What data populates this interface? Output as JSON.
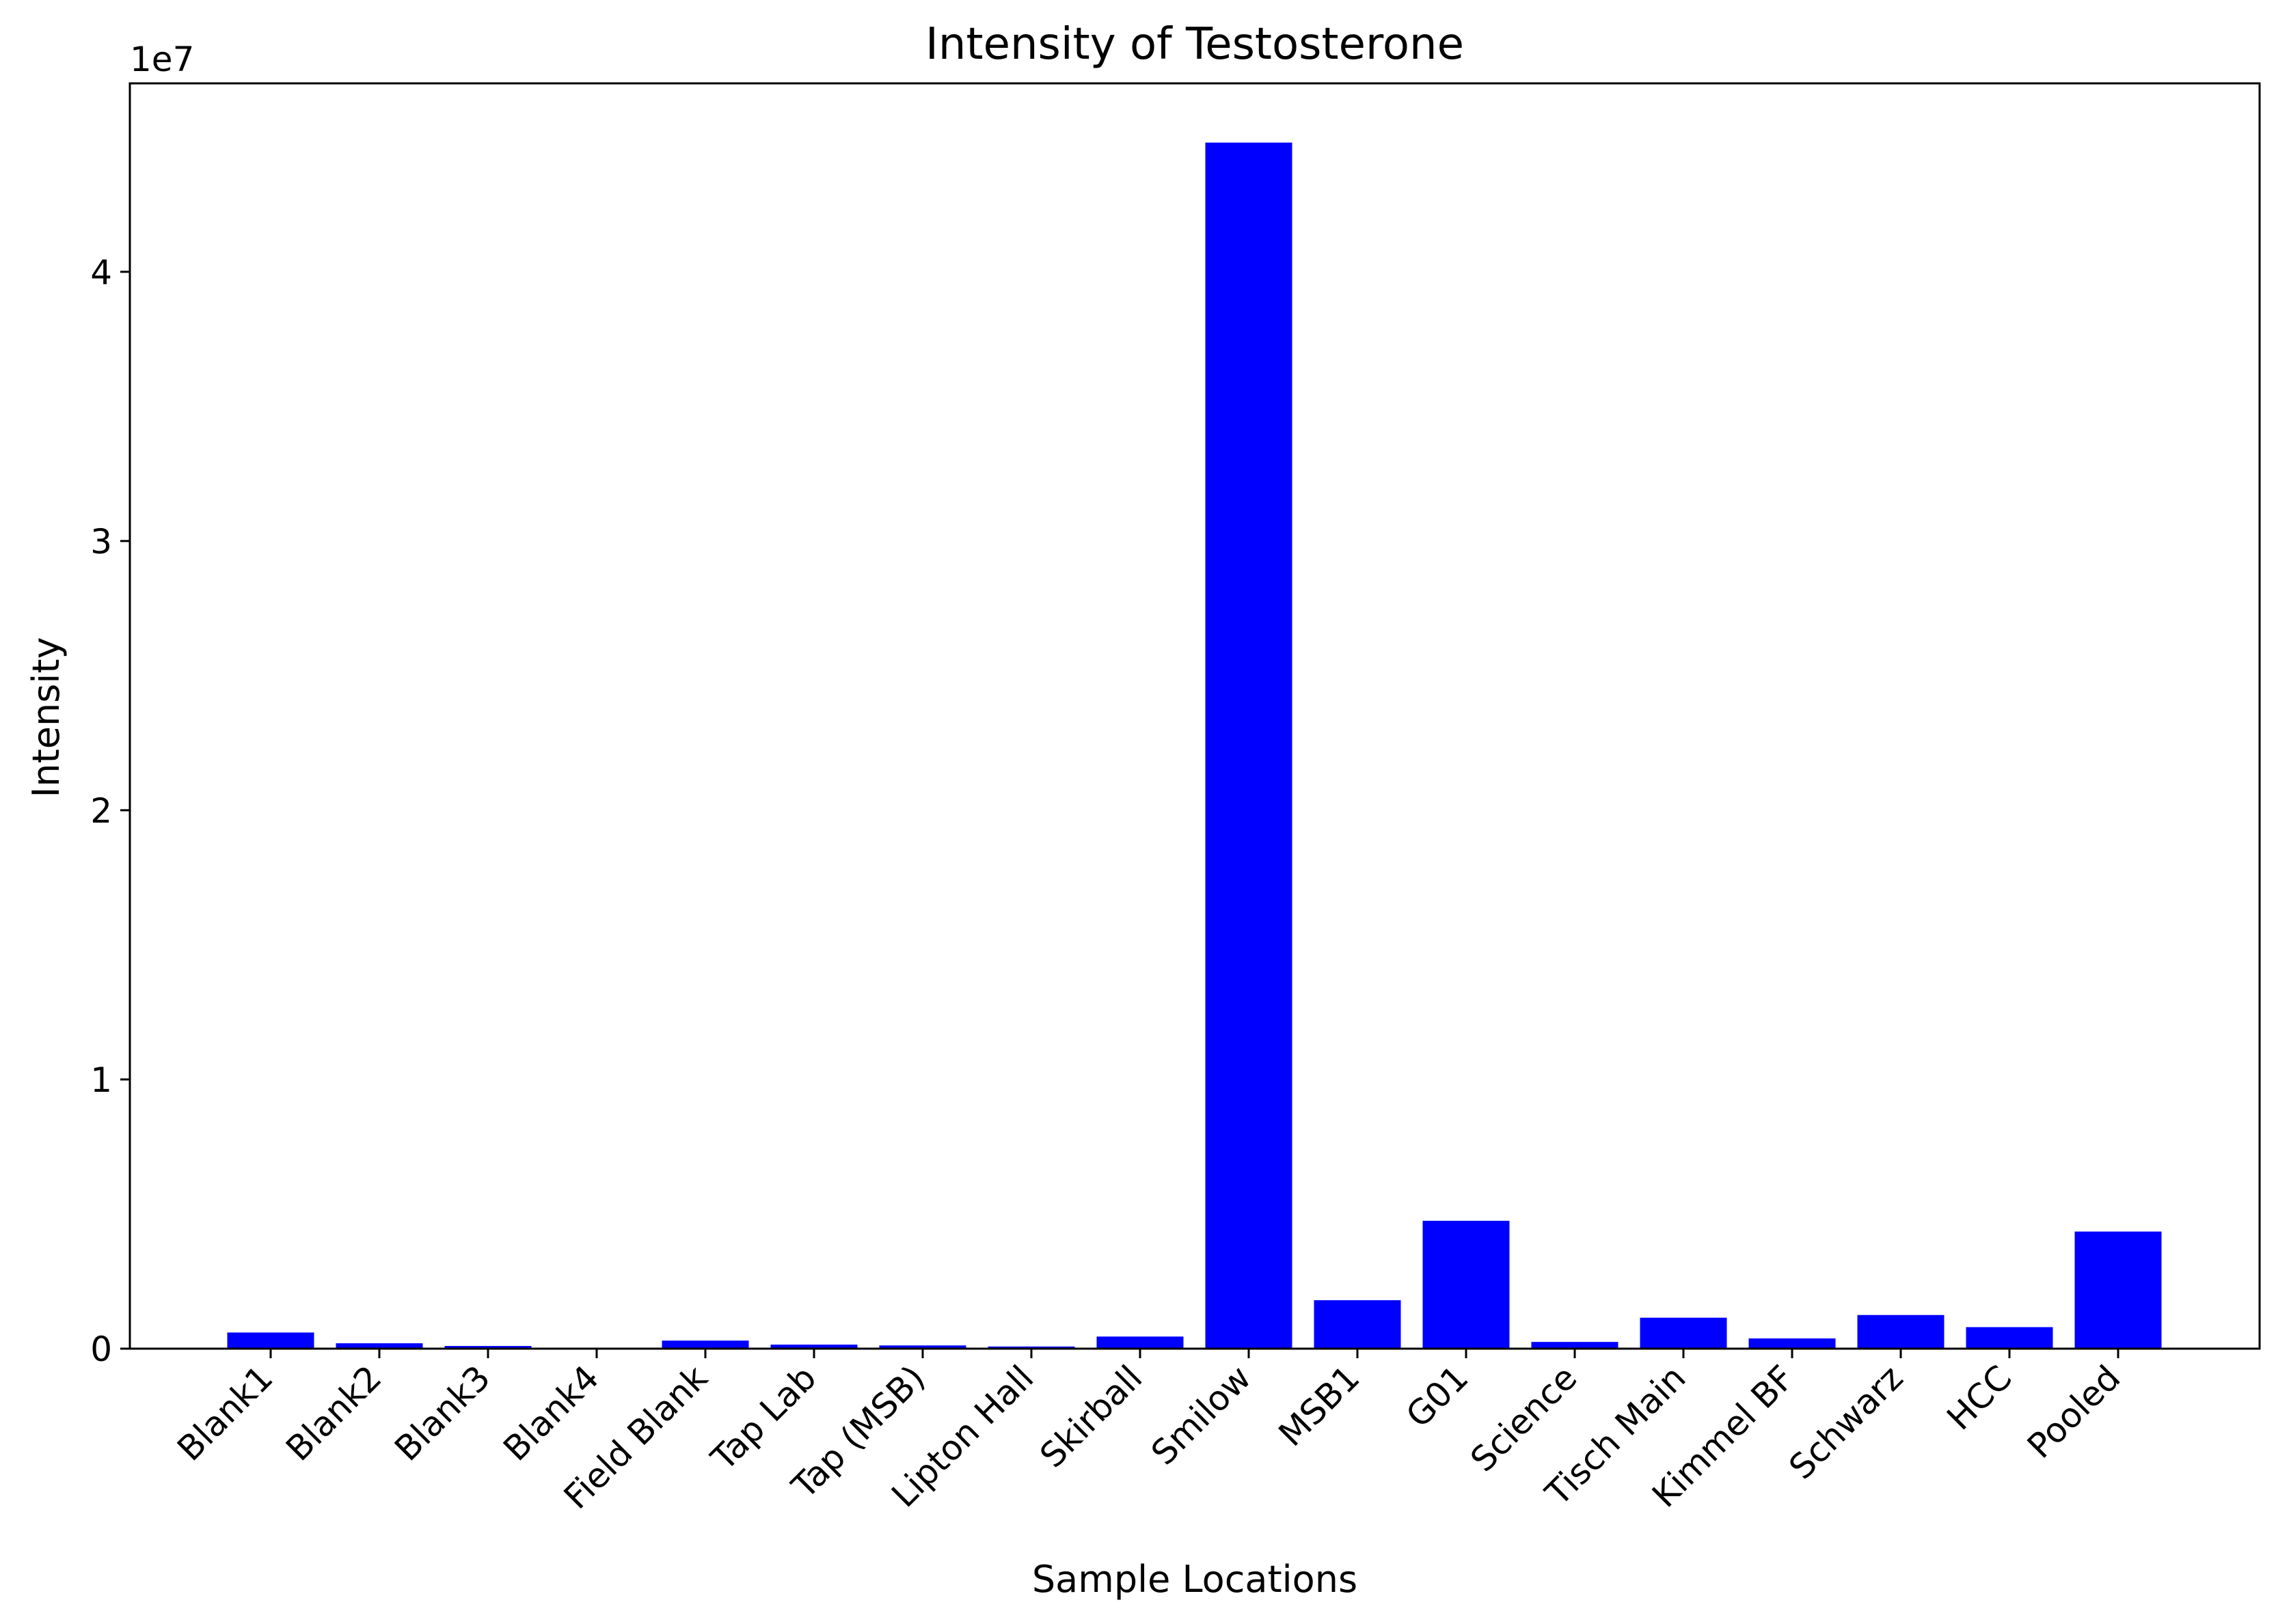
{
  "chart_data": {
    "type": "bar",
    "title": "Intensity of Testosterone",
    "xlabel": "Sample Locations",
    "ylabel": "Intensity",
    "y_offset_label": "1e7",
    "ylim": [
      0,
      47000000
    ],
    "yticks": [
      0,
      10000000,
      20000000,
      30000000,
      40000000
    ],
    "ytick_labels": [
      "0",
      "1",
      "2",
      "3",
      "4"
    ],
    "grid": false,
    "legend": "none",
    "bar_color": "#0000ff",
    "categories": [
      "Blank1",
      "Blank2",
      "Blank3",
      "Blank4",
      "Field Blank",
      "Tap Lab",
      "Tap (MSB)",
      "Lipton Hall",
      "Skirball",
      "Smilow",
      "MSB1",
      "G01",
      "Science",
      "Tisch Main",
      "Kimmel BF",
      "Schwarz",
      "HCC",
      "Pooled"
    ],
    "values": [
      600000,
      200000,
      100000,
      0,
      300000,
      150000,
      120000,
      80000,
      450000,
      44800000,
      1800000,
      4750000,
      250000,
      1150000,
      380000,
      1250000,
      800000,
      4350000
    ]
  }
}
